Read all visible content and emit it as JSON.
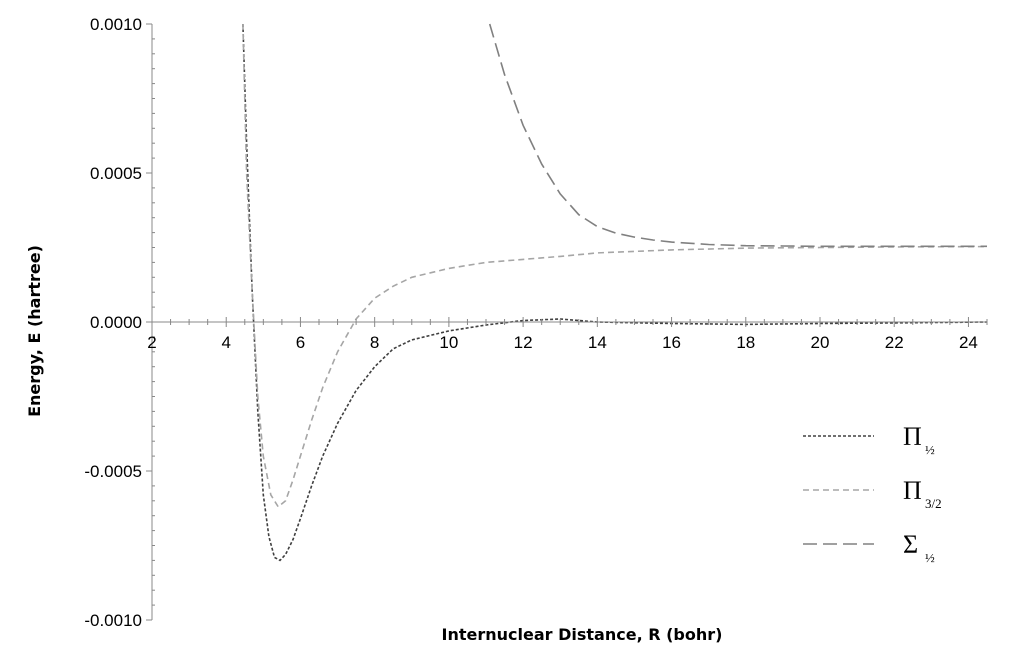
{
  "chart_data": {
    "type": "line",
    "xlabel": "Internuclear Distance, R (bohr)",
    "ylabel": "Energy, E (hartree)",
    "xlim": [
      2,
      24.5
    ],
    "ylim": [
      -0.001,
      0.001
    ],
    "x_ticks": [
      "2",
      "4",
      "6",
      "8",
      "10",
      "12",
      "14",
      "16",
      "18",
      "20",
      "22",
      "24"
    ],
    "y_ticks": [
      "-0.0010",
      "-0.0005",
      "0.0000",
      "0.0005",
      "0.0010"
    ],
    "grid": false,
    "legend_position": "right",
    "series": [
      {
        "name": "Π1/2",
        "legend_symbol": "Π",
        "legend_sub": "½",
        "color": "#404040",
        "dash": "3,2",
        "x": [
          4.45,
          4.55,
          4.7,
          4.85,
          5.0,
          5.15,
          5.3,
          5.45,
          5.6,
          5.8,
          6.0,
          6.3,
          6.6,
          7.0,
          7.5,
          8.0,
          8.5,
          9.0,
          10.0,
          11.0,
          12.0,
          13.0,
          14.0,
          16.0,
          18.0,
          20.0,
          22.0,
          24.5
        ],
        "y": [
          0.001,
          0.0006,
          0.0001,
          -0.0003,
          -0.00058,
          -0.00072,
          -0.00079,
          -0.0008,
          -0.00078,
          -0.00073,
          -0.00066,
          -0.00055,
          -0.00045,
          -0.00034,
          -0.00023,
          -0.00015,
          -9e-05,
          -6e-05,
          -3e-05,
          -1e-05,
          5e-06,
          1e-05,
          0.0,
          -5e-06,
          -8e-06,
          -5e-06,
          -3e-06,
          0.0
        ]
      },
      {
        "name": "Π3/2",
        "legend_symbol": "Π",
        "legend_sub": "3/2",
        "color": "#a6a6a6",
        "dash": "6,4",
        "x": [
          4.45,
          4.55,
          4.7,
          4.85,
          5.0,
          5.2,
          5.4,
          5.6,
          5.8,
          6.0,
          6.3,
          6.6,
          7.0,
          7.5,
          8.0,
          8.5,
          9.0,
          10.0,
          11.0,
          12.0,
          13.0,
          14.0,
          16.0,
          18.0,
          20.0,
          22.0,
          24.5
        ],
        "y": [
          0.001,
          0.0005,
          0.0001,
          -0.00025,
          -0.00045,
          -0.00058,
          -0.00062,
          -0.0006,
          -0.00053,
          -0.00045,
          -0.00033,
          -0.00022,
          -0.0001,
          1e-05,
          8e-05,
          0.00012,
          0.00015,
          0.00018,
          0.0002,
          0.00021,
          0.00022,
          0.000232,
          0.000242,
          0.000248,
          0.00025,
          0.000252,
          0.000253
        ]
      },
      {
        "name": "Σ1/2",
        "legend_symbol": "Σ",
        "legend_sub": "½",
        "color": "#808080",
        "dash": "14,6",
        "x": [
          11.1,
          11.5,
          12.0,
          12.5,
          13.0,
          13.5,
          14.0,
          14.5,
          15.0,
          15.5,
          16.0,
          17.0,
          18.0,
          19.0,
          20.0,
          22.0,
          24.5
        ],
        "y": [
          0.001,
          0.00083,
          0.00066,
          0.00053,
          0.00043,
          0.00036,
          0.00032,
          0.000298,
          0.000285,
          0.000275,
          0.000268,
          0.00026,
          0.000256,
          0.000255,
          0.000254,
          0.000254,
          0.000254
        ]
      }
    ]
  }
}
